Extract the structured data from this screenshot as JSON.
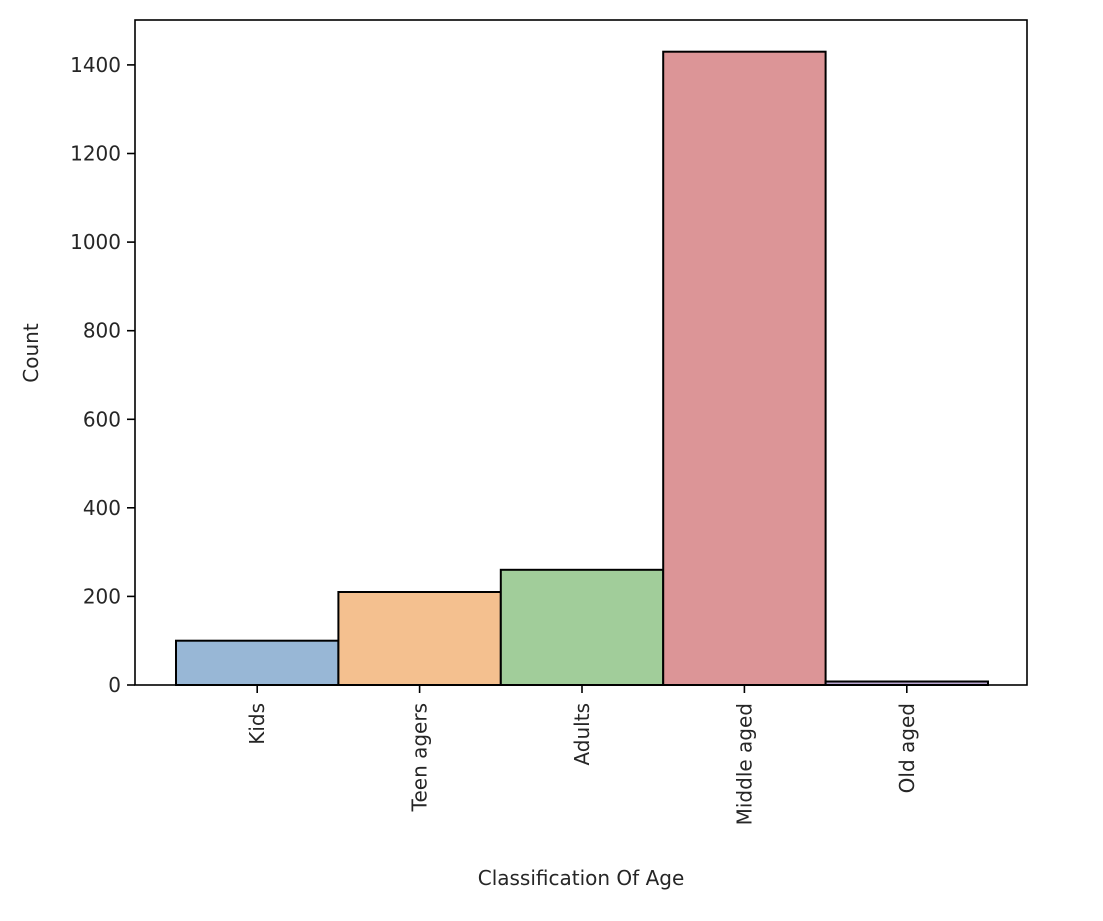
{
  "chart_data": {
    "type": "bar",
    "title": "",
    "xlabel": "Classification Of Age",
    "ylabel": "Count",
    "categories": [
      "Kids",
      "Teen agers",
      "Adults",
      "Middle aged",
      "Old aged"
    ],
    "values": [
      100,
      210,
      260,
      1430,
      8
    ],
    "colors": [
      "#98b7d6",
      "#f4c08f",
      "#a1cd9a",
      "#dc9597",
      "#b9a6d0"
    ],
    "yticks": [
      "0",
      "200",
      "400",
      "600",
      "800",
      "1000",
      "1200",
      "1400"
    ],
    "ylim": [
      0,
      1500
    ],
    "grid": false,
    "legend": "none"
  }
}
